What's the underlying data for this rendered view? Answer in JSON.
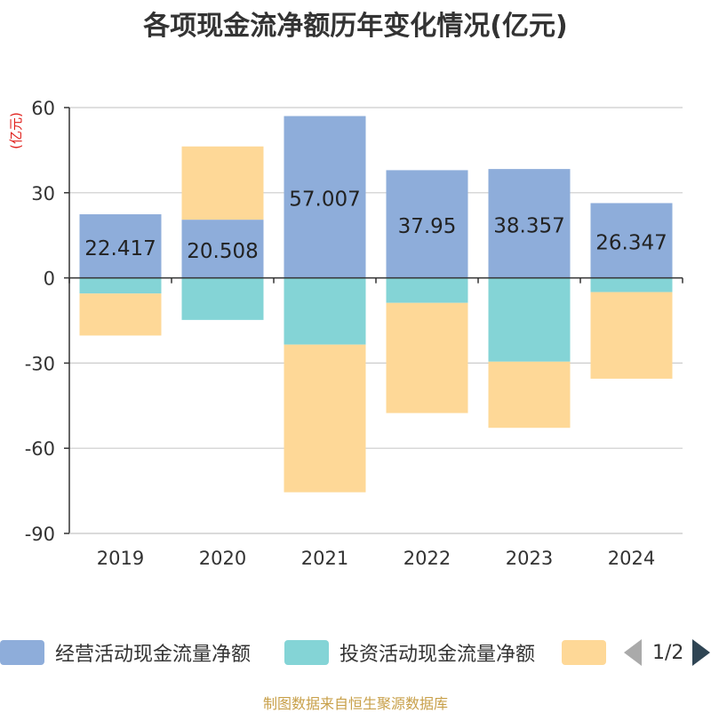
{
  "title": "各项现金流净额历年变化情况(亿元)",
  "y_unit_label": "(亿元)",
  "source": "制图数据来自恒生聚源数据库",
  "pager": {
    "text": "1/2"
  },
  "colors": {
    "operating": "#8eadda",
    "investing": "#84d4d6",
    "financing": "#fed897",
    "unit": "#e0201c"
  },
  "chart_data": {
    "type": "bar",
    "stacked": true,
    "categories": [
      "2019",
      "2020",
      "2021",
      "2022",
      "2023",
      "2024"
    ],
    "ylim": [
      -90,
      60
    ],
    "yticks": [
      60,
      30,
      0,
      -30,
      -60,
      -90
    ],
    "grid": true,
    "legend_position": "bottom",
    "series": [
      {
        "name": "经营活动现金流量净额",
        "values": [
          22.417,
          20.508,
          57.007,
          37.95,
          38.357,
          26.347
        ],
        "labels": [
          "22.417",
          "20.508",
          "57.007",
          "37.95",
          "38.357",
          "26.347"
        ]
      },
      {
        "name": "投资活动现金流量净额",
        "values": [
          -5.5,
          -14.8,
          -23.5,
          -8.8,
          -29.5,
          -5.0
        ]
      },
      {
        "name": "",
        "values": [
          -14.8,
          25.8,
          -52.0,
          -38.8,
          -23.3,
          -30.5
        ]
      }
    ]
  }
}
